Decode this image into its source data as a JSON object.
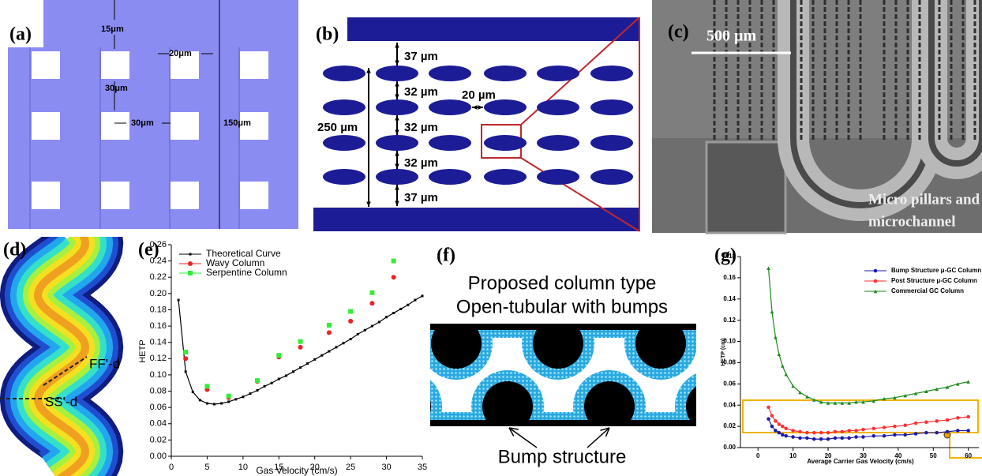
{
  "panels": {
    "a": {
      "tag": "(a)",
      "labels": [
        "15μm",
        "20μm",
        "30μm",
        "30μm",
        "150μm"
      ]
    },
    "b": {
      "tag": "(b)",
      "labels": [
        "37 µm",
        "32 µm",
        "20 µm",
        "32 µm",
        "32 µm",
        "37 µm",
        "250 µm"
      ]
    },
    "c": {
      "tag": "(c)",
      "scale": "500 µm",
      "caption": [
        "Micro pillars and",
        "microchannel"
      ]
    },
    "d": {
      "tag": "(d)",
      "labels": [
        "FF'-d",
        "SS'-d"
      ]
    },
    "e": {
      "tag": "(e)"
    },
    "f": {
      "tag": "(f)",
      "title": [
        "Proposed column type",
        "Open-tubular with bumps"
      ],
      "label": "Bump structure"
    },
    "g": {
      "tag": "(g)"
    }
  },
  "chart_data": [
    {
      "type": "scatter",
      "xlabel": "Gas Velocity (cm/s)",
      "ylabel": "HETP",
      "xlim": [
        0,
        35
      ],
      "ylim": [
        0,
        0.26
      ],
      "xticks": [
        0,
        5,
        10,
        15,
        20,
        25,
        30,
        35
      ],
      "yticks": [
        {
          "value": 0,
          "label": "0.00"
        },
        0.02,
        0.04,
        0.06,
        0.08,
        {
          "value": 0.1,
          "label": "0.10"
        },
        0.12,
        0.14,
        0.16,
        0.18,
        {
          "value": 0.2,
          "label": "0.20"
        },
        0.22,
        0.24,
        0.26
      ],
      "legend": "upper left",
      "grid": false,
      "series": [
        {
          "name": "Theoretical Curve",
          "color": "#000000",
          "line": true,
          "marker": "square",
          "x": [
            1,
            2,
            3,
            4,
            5,
            6,
            7,
            8,
            9,
            10,
            11,
            12,
            13,
            14,
            15,
            16,
            17,
            18,
            19,
            20,
            21,
            22,
            23,
            24,
            25,
            26,
            27,
            28,
            29,
            30,
            31,
            32,
            33,
            34,
            35
          ],
          "values": [
            0.192,
            0.104,
            0.079,
            0.069,
            0.065,
            0.064,
            0.065,
            0.067,
            0.07,
            0.073,
            0.077,
            0.081,
            0.086,
            0.09,
            0.095,
            0.099,
            0.104,
            0.109,
            0.114,
            0.119,
            0.124,
            0.129,
            0.134,
            0.139,
            0.144,
            0.15,
            0.155,
            0.16,
            0.165,
            0.171,
            0.176,
            0.181,
            0.186,
            0.192,
            0.197
          ]
        },
        {
          "name": "Wavy Column",
          "color": "#ee2222",
          "line": false,
          "marker": "circle",
          "x": [
            2,
            5,
            8,
            12,
            15,
            18,
            22,
            25,
            28,
            31
          ],
          "values": [
            0.12,
            0.082,
            0.072,
            0.092,
            0.122,
            0.134,
            0.152,
            0.166,
            0.188,
            0.22
          ]
        },
        {
          "name": "Serpentine Column",
          "color": "#33ee33",
          "line": false,
          "marker": "square",
          "x": [
            2,
            5,
            8,
            12,
            15,
            18,
            22,
            25,
            28,
            31
          ],
          "values": [
            0.128,
            0.086,
            0.074,
            0.093,
            0.124,
            0.141,
            0.161,
            0.178,
            0.201,
            0.24
          ]
        }
      ]
    },
    {
      "type": "line",
      "xlabel": "Average Carrier Gas Velocity (cm/s)",
      "ylabel": "HETP (cm)",
      "xlim": [
        -5,
        63
      ],
      "ylim": [
        0,
        0.18
      ],
      "xticks": [
        0,
        10,
        20,
        30,
        40,
        50,
        60
      ],
      "yticks": [
        {
          "value": 0,
          "label": "0.00"
        },
        0.02,
        0.04,
        0.06,
        0.08,
        {
          "value": 0.1,
          "label": "0.10"
        },
        0.12,
        0.14,
        0.16,
        0.18
      ],
      "legend": "upper right",
      "grid": false,
      "series": [
        {
          "name": "Bump Structure μ-GC Column",
          "color": "#1a1aaa",
          "line": true,
          "marker": "circle",
          "x": [
            3,
            4,
            5,
            6,
            7,
            8,
            10,
            12,
            14,
            16,
            18,
            20,
            22,
            24,
            26,
            28,
            30,
            33,
            36,
            39,
            42,
            45,
            48,
            51,
            54,
            57,
            60
          ],
          "values": [
            0.027,
            0.02,
            0.016,
            0.014,
            0.012,
            0.011,
            0.01,
            0.009,
            0.009,
            0.008,
            0.008,
            0.008,
            0.009,
            0.009,
            0.009,
            0.01,
            0.01,
            0.011,
            0.011,
            0.012,
            0.012,
            0.013,
            0.014,
            0.014,
            0.015,
            0.016,
            0.016
          ]
        },
        {
          "name": "Post Structure μ-GC Column",
          "color": "#ff3030",
          "line": true,
          "marker": "circle",
          "x": [
            3,
            4,
            5,
            6,
            7,
            8,
            10,
            12,
            14,
            16,
            18,
            20,
            22,
            24,
            26,
            28,
            30,
            33,
            36,
            39,
            42,
            45,
            48,
            51,
            54,
            57,
            60
          ],
          "values": [
            0.038,
            0.03,
            0.025,
            0.022,
            0.02,
            0.018,
            0.016,
            0.015,
            0.014,
            0.014,
            0.014,
            0.014,
            0.015,
            0.015,
            0.016,
            0.016,
            0.017,
            0.018,
            0.019,
            0.02,
            0.021,
            0.023,
            0.024,
            0.025,
            0.026,
            0.028,
            0.029
          ]
        },
        {
          "name": "Commercial GC Column",
          "color": "#1a8a1a",
          "line": true,
          "marker": "triangle",
          "x": [
            3,
            4,
            5,
            6,
            7,
            8,
            10,
            12,
            14,
            16,
            18,
            20,
            22,
            24,
            26,
            28,
            30,
            33,
            36,
            39,
            42,
            45,
            48,
            51,
            54,
            57,
            60
          ],
          "values": [
            0.169,
            0.128,
            0.104,
            0.088,
            0.077,
            0.069,
            0.058,
            0.052,
            0.048,
            0.045,
            0.043,
            0.042,
            0.042,
            0.042,
            0.042,
            0.043,
            0.043,
            0.044,
            0.046,
            0.047,
            0.049,
            0.051,
            0.053,
            0.055,
            0.057,
            0.06,
            0.062
          ]
        }
      ]
    }
  ]
}
